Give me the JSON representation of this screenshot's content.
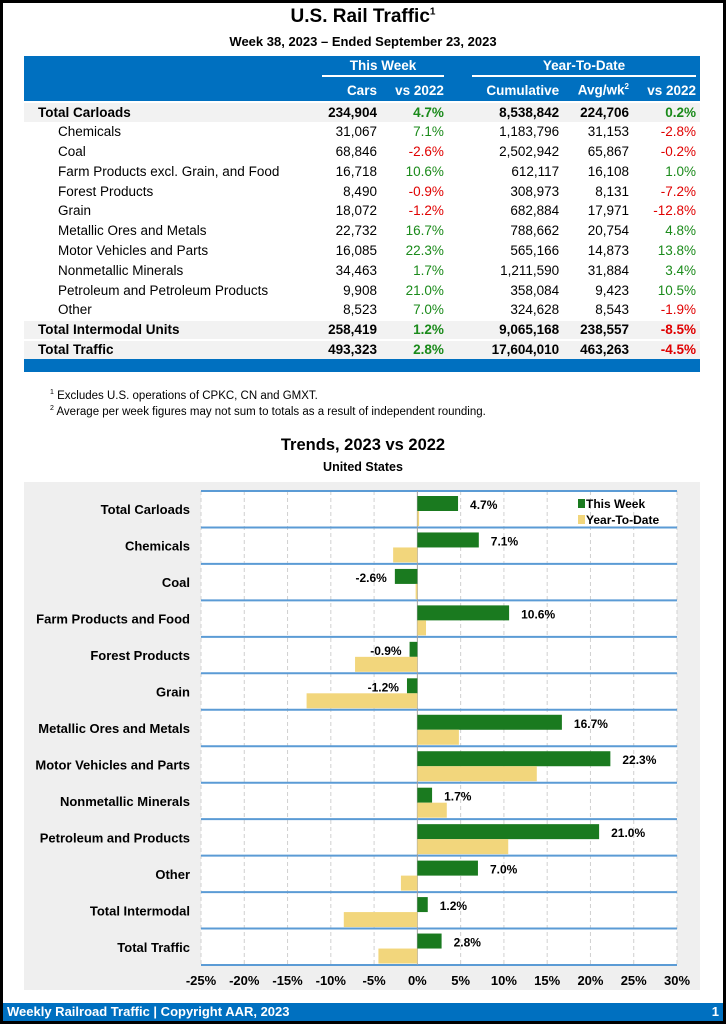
{
  "header": {
    "title": "U.S. Rail Traffic",
    "title_sup": "1",
    "subtitle": "Week 38, 2023 – Ended September 23, 2023"
  },
  "table": {
    "group_this_week": "This Week",
    "group_ytd": "Year-To-Date",
    "columns": [
      "Cars",
      "vs 2022",
      "Cumulative",
      "Avg/wk",
      "vs 2022"
    ],
    "avg_sup": "2",
    "rows": [
      {
        "label": "Total Carloads",
        "bold": true,
        "cars": "234,904",
        "vs": "4.7%",
        "cum": "8,538,842",
        "avg": "224,706",
        "ytd": "0.2%"
      },
      {
        "label": "Chemicals",
        "cars": "31,067",
        "vs": "7.1%",
        "cum": "1,183,796",
        "avg": "31,153",
        "ytd": "-2.8%"
      },
      {
        "label": "Coal",
        "cars": "68,846",
        "vs": "-2.6%",
        "cum": "2,502,942",
        "avg": "65,867",
        "ytd": "-0.2%"
      },
      {
        "label": "Farm Products excl. Grain, and Food",
        "cars": "16,718",
        "vs": "10.6%",
        "cum": "612,117",
        "avg": "16,108",
        "ytd": "1.0%"
      },
      {
        "label": "Forest Products",
        "cars": "8,490",
        "vs": "-0.9%",
        "cum": "308,973",
        "avg": "8,131",
        "ytd": "-7.2%"
      },
      {
        "label": "Grain",
        "cars": "18,072",
        "vs": "-1.2%",
        "cum": "682,884",
        "avg": "17,971",
        "ytd": "-12.8%"
      },
      {
        "label": "Metallic Ores and Metals",
        "cars": "22,732",
        "vs": "16.7%",
        "cum": "788,662",
        "avg": "20,754",
        "ytd": "4.8%"
      },
      {
        "label": "Motor Vehicles and Parts",
        "cars": "16,085",
        "vs": "22.3%",
        "cum": "565,166",
        "avg": "14,873",
        "ytd": "13.8%"
      },
      {
        "label": "Nonmetallic Minerals",
        "cars": "34,463",
        "vs": "1.7%",
        "cum": "1,211,590",
        "avg": "31,884",
        "ytd": "3.4%"
      },
      {
        "label": "Petroleum and Petroleum Products",
        "cars": "9,908",
        "vs": "21.0%",
        "cum": "358,084",
        "avg": "9,423",
        "ytd": "10.5%"
      },
      {
        "label": "Other",
        "cars": "8,523",
        "vs": "7.0%",
        "cum": "324,628",
        "avg": "8,543",
        "ytd": "-1.9%"
      },
      {
        "label": "Total Intermodal Units",
        "bold": true,
        "cars": "258,419",
        "vs": "1.2%",
        "cum": "9,065,168",
        "avg": "238,557",
        "ytd": "-8.5%"
      },
      {
        "label": "Total Traffic",
        "bold": true,
        "cars": "493,323",
        "vs": "2.8%",
        "cum": "17,604,010",
        "avg": "463,263",
        "ytd": "-4.5%"
      }
    ]
  },
  "footnotes": [
    {
      "sup": "1",
      "text": "Excludes U.S. operations of CPKC, CN and GMXT."
    },
    {
      "sup": "2",
      "text": "Average per week figures may not sum to totals as a result of independent rounding."
    }
  ],
  "chart_data": {
    "type": "bar",
    "orientation": "horizontal",
    "title": "Trends, 2023 vs 2022",
    "subtitle": "United States",
    "categories": [
      "Total Carloads",
      "Chemicals",
      "Coal",
      "Farm Products and Food",
      "Forest Products",
      "Grain",
      "Metallic Ores and Metals",
      "Motor Vehicles and Parts",
      "Nonmetallic Minerals",
      "Petroleum and Products",
      "Other",
      "Total Intermodal",
      "Total Traffic"
    ],
    "series": [
      {
        "name": "This Week",
        "color": "#1a7a1f",
        "values": [
          4.7,
          7.1,
          -2.6,
          10.6,
          -0.9,
          -1.2,
          16.7,
          22.3,
          1.7,
          21.0,
          7.0,
          1.2,
          2.8
        ],
        "labels": [
          "4.7%",
          "7.1%",
          "-2.6%",
          "10.6%",
          "-0.9%",
          "-1.2%",
          "16.7%",
          "22.3%",
          "1.7%",
          "21.0%",
          "7.0%",
          "1.2%",
          "2.8%"
        ]
      },
      {
        "name": "Year-To-Date",
        "color": "#f2d67c",
        "values": [
          0.2,
          -2.8,
          -0.2,
          1.0,
          -7.2,
          -12.8,
          4.8,
          13.8,
          3.4,
          10.5,
          -1.9,
          -8.5,
          -4.5
        ]
      }
    ],
    "xlim": [
      -25,
      30
    ],
    "xticks": [
      -25,
      -20,
      -15,
      -10,
      -5,
      0,
      5,
      10,
      15,
      20,
      25,
      30
    ],
    "xtick_labels": [
      "-25%",
      "-20%",
      "-15%",
      "-10%",
      "-5%",
      "0%",
      "5%",
      "10%",
      "15%",
      "20%",
      "25%",
      "30%"
    ],
    "legend": "top-right",
    "grid": true
  },
  "footer": {
    "text": "Weekly Railroad Traffic | Copyright AAR, 2023",
    "page": "1"
  }
}
